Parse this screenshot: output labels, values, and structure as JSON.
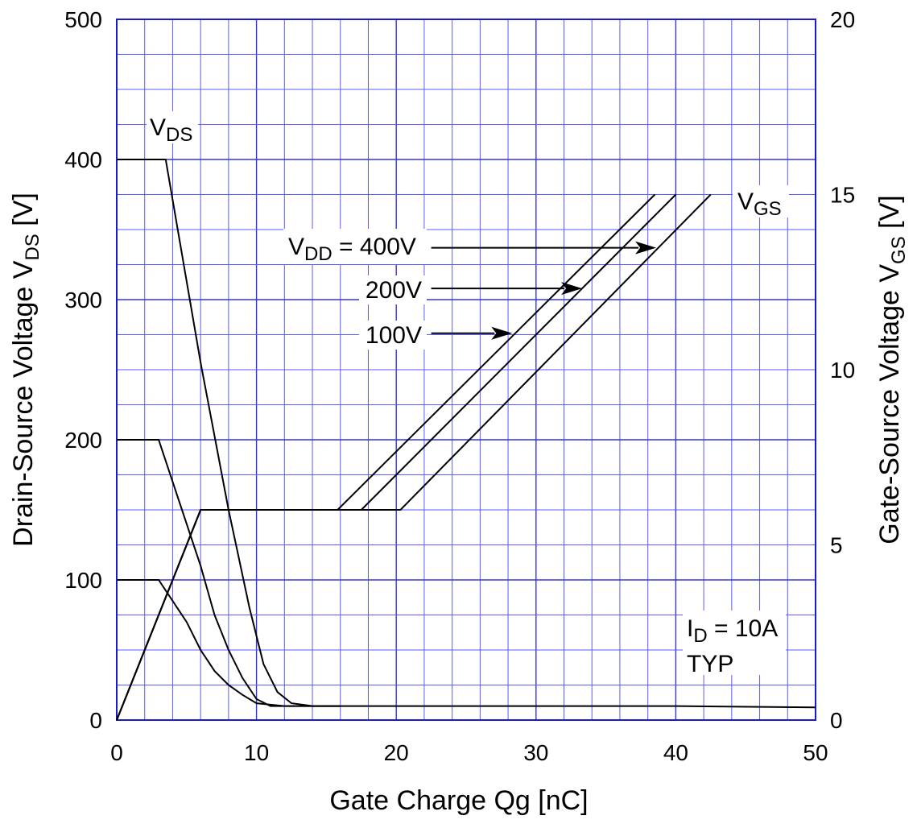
{
  "chart_data": {
    "type": "line",
    "title": "",
    "xlabel": "Gate Charge  Qg  [nC]",
    "ylabel_left": {
      "text": "Drain-Source Voltage  V",
      "sub": "DS",
      "unit": "  [V]"
    },
    "ylabel_right": {
      "text": "Gate-Source Voltage  V",
      "sub": "GS",
      "unit": "  [V]"
    },
    "xlim": [
      0,
      50
    ],
    "ylim_left": [
      0,
      500
    ],
    "ylim_right": [
      0,
      20
    ],
    "x_ticks": [
      "0",
      "10",
      "20",
      "30",
      "40",
      "50"
    ],
    "y_left_ticks": [
      "0",
      "100",
      "200",
      "300",
      "400",
      "500"
    ],
    "y_right_ticks": [
      "0",
      "5",
      "10",
      "15",
      "20"
    ],
    "grid": true,
    "x_minor_step": 2,
    "y_minor_step": 25,
    "series": [
      {
        "axis": "left",
        "x": [
          0,
          3.5,
          6,
          8,
          9.5,
          10.5,
          11.5,
          12.5,
          14,
          16,
          18,
          20,
          25,
          30,
          40,
          50
        ],
        "y": [
          400,
          400,
          255,
          150,
          80,
          40,
          20,
          12,
          10,
          10,
          10,
          10,
          10,
          10,
          10,
          9
        ]
      },
      {
        "axis": "left",
        "x": [
          0,
          3,
          6,
          7,
          8,
          9,
          10,
          11,
          16
        ],
        "y": [
          200,
          200,
          110,
          75,
          50,
          30,
          15,
          10,
          10
        ]
      },
      {
        "axis": "left",
        "x": [
          0,
          3,
          5,
          6,
          7,
          8,
          9,
          10,
          12,
          16
        ],
        "y": [
          100,
          100,
          70,
          50,
          35,
          25,
          18,
          12,
          10,
          10
        ]
      },
      {
        "axis": "right",
        "x": [
          0,
          6,
          15.8,
          38.5
        ],
        "y": [
          0,
          6,
          6,
          15
        ]
      },
      {
        "axis": "right",
        "x": [
          0,
          6,
          17.5,
          40
        ],
        "y": [
          0,
          6,
          6,
          15
        ]
      },
      {
        "axis": "right",
        "x": [
          0,
          6,
          20.3,
          42.5
        ],
        "y": [
          0,
          6,
          6,
          15
        ]
      }
    ],
    "annotations": {
      "vds": {
        "main": "V",
        "sub": "DS",
        "x": 4,
        "y": 420
      },
      "vgs": {
        "main": "V",
        "sub": "GS",
        "x": 44,
        "y": 366
      },
      "vdd400": {
        "main": "V",
        "sub": "DD",
        "rest": " = 400V"
      },
      "v200": "200V",
      "v100": "100V",
      "id": {
        "main": "I",
        "sub": "D",
        "rest": " = 10A"
      },
      "typ": "TYP"
    },
    "arrows": [
      {
        "from": [
          22.5,
          337
        ],
        "to": [
          38.6,
          337
        ]
      },
      {
        "from": [
          22.5,
          308
        ],
        "to": [
          33.3,
          308
        ]
      },
      {
        "from": [
          22.5,
          276
        ],
        "to": [
          28.3,
          276
        ]
      }
    ]
  }
}
